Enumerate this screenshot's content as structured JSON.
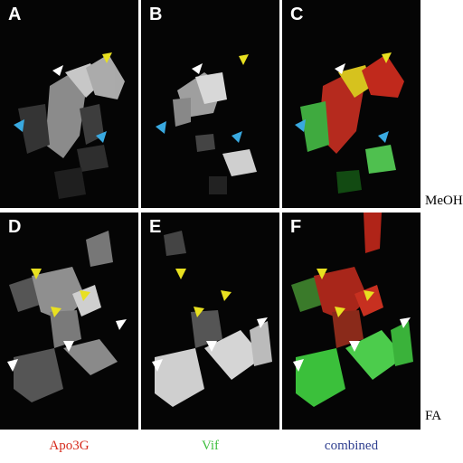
{
  "panels": [
    {
      "letter": "A"
    },
    {
      "letter": "B"
    },
    {
      "letter": "C"
    },
    {
      "letter": "D"
    },
    {
      "letter": "E"
    },
    {
      "letter": "F"
    }
  ],
  "row_labels": [
    "MeOH",
    "FA"
  ],
  "column_labels": [
    "Apo3G",
    "Vif",
    "combined"
  ],
  "colors": {
    "apo3g": "#d62a1c",
    "vif": "#3fbf3f",
    "combined": "#2e3e8f",
    "arrow_white": "#ffffff",
    "arrow_yellow": "#e8e020",
    "arrow_cyan": "#39a9e0"
  }
}
